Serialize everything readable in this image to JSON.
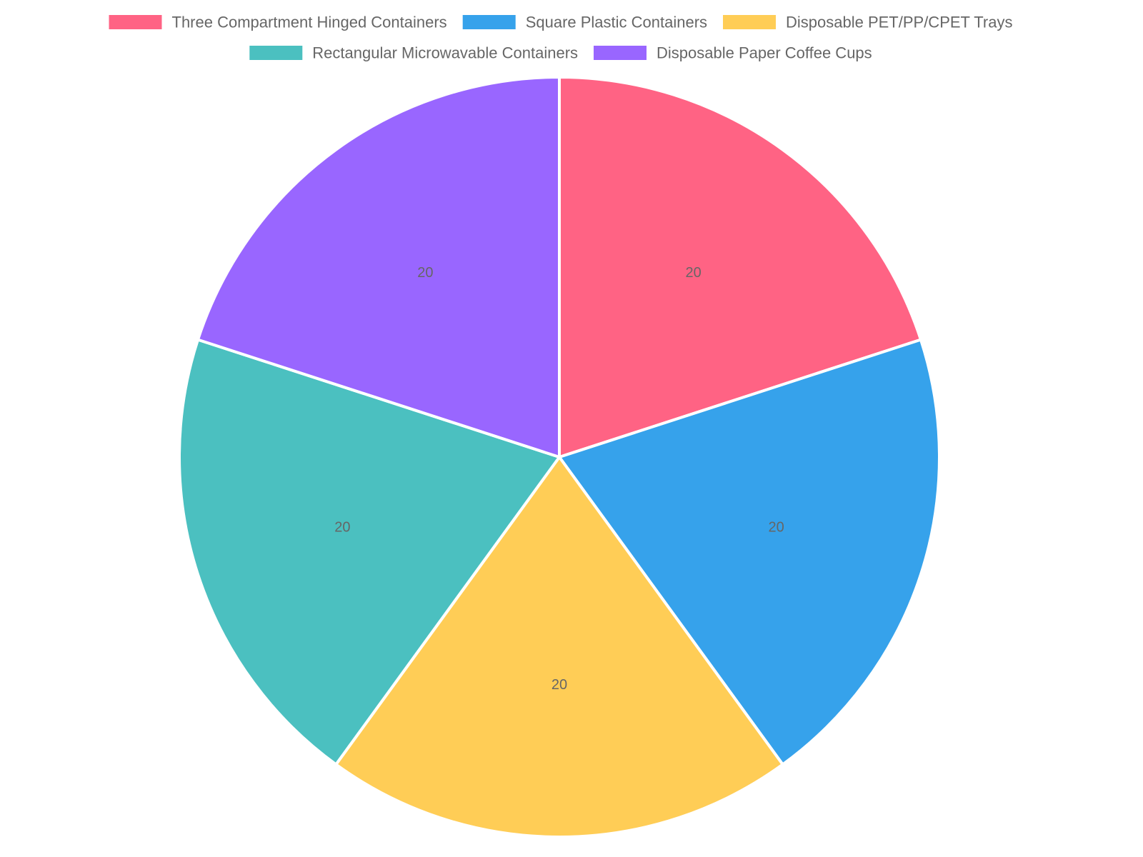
{
  "chart_data": {
    "type": "pie",
    "title": "",
    "legend_position": "top",
    "categories": [
      "Three Compartment Hinged Containers",
      "Square Plastic Containers",
      "Disposable PET/PP/CPET Trays",
      "Rectangular Microwavable Containers",
      "Disposable Paper Coffee Cups"
    ],
    "values": [
      20,
      20,
      20,
      20,
      20
    ],
    "colors": [
      "#ff6384",
      "#36a2eb",
      "#ffcd56",
      "#4bc0c0",
      "#9966ff"
    ],
    "data_labels": [
      "20",
      "20",
      "20",
      "20",
      "20"
    ]
  }
}
